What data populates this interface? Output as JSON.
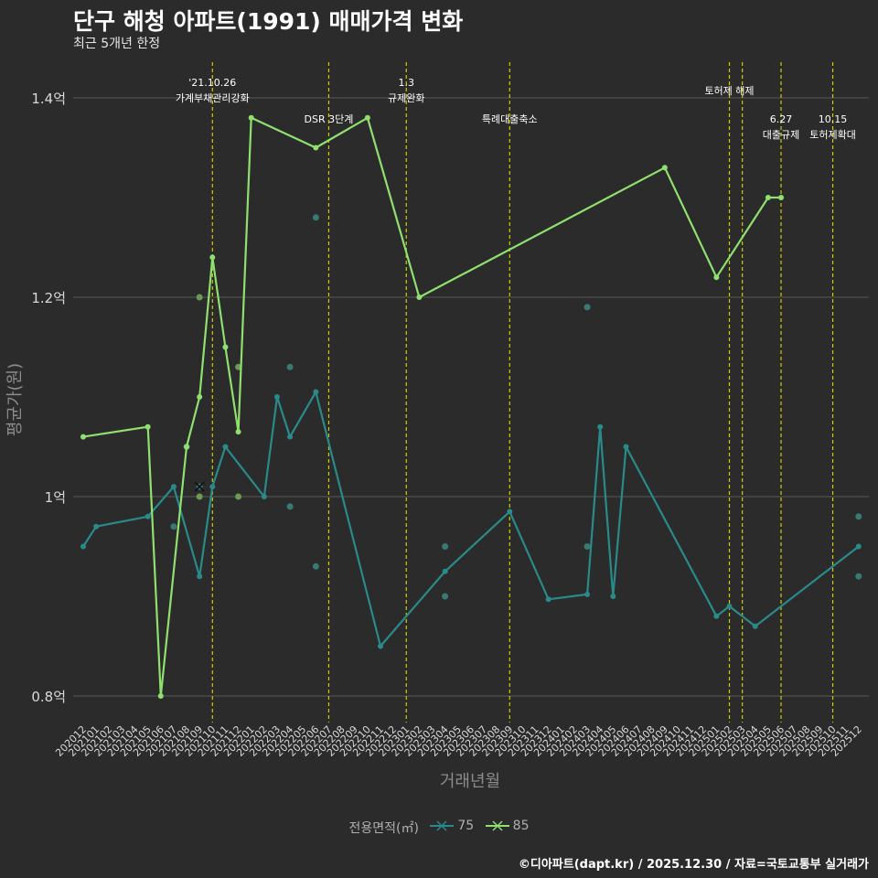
{
  "title": "단구 해청 아파트(1991) 매매가격 변화",
  "subtitle": "최근 5개년 한정",
  "caption": "©디아파트(dapt.kr) / 2025.12.30 / 자료=국토교통부 실거래가",
  "colors": {
    "background": "#2b2b2b",
    "grid": "#5a5a5a",
    "event_line": "#cccc00",
    "series_75": "#2a8a8a",
    "series_85": "#90e070",
    "point_75": "#3a7a74",
    "point_85": "#6b9a52"
  },
  "chart_data": {
    "type": "line",
    "title": "단구 해청 아파트(1991) 매매가격 변화",
    "xlabel": "거래년월",
    "ylabel": "평균가(원)",
    "categories": [
      "202012",
      "202101",
      "202102",
      "202103",
      "202104",
      "202105",
      "202106",
      "202107",
      "202108",
      "202109",
      "202110",
      "202111",
      "202112",
      "202201",
      "202202",
      "202203",
      "202204",
      "202205",
      "202206",
      "202207",
      "202208",
      "202209",
      "202210",
      "202211",
      "202212",
      "202301",
      "202302",
      "202303",
      "202304",
      "202305",
      "202306",
      "202307",
      "202308",
      "202309",
      "202310",
      "202311",
      "202312",
      "202401",
      "202402",
      "202403",
      "202404",
      "202405",
      "202406",
      "202407",
      "202408",
      "202409",
      "202410",
      "202411",
      "202412",
      "202501",
      "202502",
      "202503",
      "202504",
      "202505",
      "202506",
      "202507",
      "202508",
      "202509",
      "202510",
      "202511",
      "202512"
    ],
    "ylim": [
      0.77,
      1.43
    ],
    "yticks": [
      0.8,
      1.0,
      1.2,
      1.4
    ],
    "ytick_labels": [
      "0.8억",
      "1억",
      "1.2억",
      "1.4억"
    ],
    "legend": {
      "title": "전용면적(㎡)",
      "position": "bottom"
    },
    "series": [
      {
        "name": "75",
        "color": "#2a8a8a",
        "points": [
          [
            "202012",
            0.95
          ],
          [
            "202101",
            0.97
          ],
          [
            "202105",
            0.98
          ],
          [
            "202107",
            1.01
          ],
          [
            "202109",
            0.92
          ],
          [
            "202110",
            1.01
          ],
          [
            "202111",
            1.05
          ],
          [
            "202202",
            1.0
          ],
          [
            "202203",
            1.1
          ],
          [
            "202204",
            1.06
          ],
          [
            "202206",
            1.105
          ],
          [
            "202211",
            0.85
          ],
          [
            "202304",
            0.925
          ],
          [
            "202309",
            0.985
          ],
          [
            "202312",
            0.897
          ],
          [
            "202403",
            0.902
          ],
          [
            "202404",
            1.07
          ],
          [
            "202405",
            0.9
          ],
          [
            "202406",
            1.05
          ],
          [
            "202501",
            0.88
          ],
          [
            "202502",
            0.89
          ],
          [
            "202504",
            0.87
          ],
          [
            "202512",
            0.95
          ]
        ]
      },
      {
        "name": "85",
        "color": "#90e070",
        "points": [
          [
            "202012",
            1.06
          ],
          [
            "202105",
            1.07
          ],
          [
            "202106",
            0.8
          ],
          [
            "202108",
            1.05
          ],
          [
            "202109",
            1.1
          ],
          [
            "202110",
            1.24
          ],
          [
            "202111",
            1.15
          ],
          [
            "202112",
            1.065
          ],
          [
            "202201",
            1.38
          ],
          [
            "202206",
            1.35
          ],
          [
            "202210",
            1.38
          ],
          [
            "202302",
            1.2
          ],
          [
            "202409",
            1.33
          ],
          [
            "202501",
            1.22
          ],
          [
            "202505",
            1.3
          ],
          [
            "202506",
            1.3
          ]
        ]
      }
    ],
    "scatter": [
      {
        "series": "75",
        "x": "202108",
        "y": 1.05
      },
      {
        "series": "75",
        "x": "202109",
        "y": 1.01
      },
      {
        "series": "75",
        "x": "202107",
        "y": 0.97
      },
      {
        "series": "75",
        "x": "202204",
        "y": 1.13
      },
      {
        "series": "75",
        "x": "202204",
        "y": 0.99
      },
      {
        "series": "75",
        "x": "202206",
        "y": 1.28
      },
      {
        "series": "75",
        "x": "202206",
        "y": 0.93
      },
      {
        "series": "75",
        "x": "202304",
        "y": 0.95
      },
      {
        "series": "75",
        "x": "202304",
        "y": 0.9
      },
      {
        "series": "75",
        "x": "202403",
        "y": 1.19
      },
      {
        "series": "75",
        "x": "202403",
        "y": 0.95
      },
      {
        "series": "75",
        "x": "202512",
        "y": 0.98
      },
      {
        "series": "75",
        "x": "202512",
        "y": 0.92
      },
      {
        "series": "85",
        "x": "202109",
        "y": 1.2
      },
      {
        "series": "85",
        "x": "202109",
        "y": 1.0
      },
      {
        "series": "85",
        "x": "202112",
        "y": 1.13
      },
      {
        "series": "85",
        "x": "202112",
        "y": 1.0
      }
    ],
    "events": [
      {
        "x": "202110",
        "labels": [
          "'21.10.26",
          "가계부채관리강화"
        ],
        "row": 0
      },
      {
        "x": "202207",
        "labels": [
          "DSR 3단계"
        ],
        "row": 1
      },
      {
        "x": "202301",
        "labels": [
          "1.3",
          "규제완화"
        ],
        "row": 0
      },
      {
        "x": "202309",
        "labels": [
          "특례대출축소"
        ],
        "row": 1
      },
      {
        "x": "202502",
        "labels": [
          "토허제 해제"
        ],
        "row": 0
      },
      {
        "x": "202503",
        "labels": [],
        "row": 0
      },
      {
        "x": "202506",
        "labels": [
          "6.27",
          "대출규제"
        ],
        "row": 1
      },
      {
        "x": "202510",
        "labels": [
          "10.15",
          "토허제확대"
        ],
        "row": 1
      }
    ]
  }
}
